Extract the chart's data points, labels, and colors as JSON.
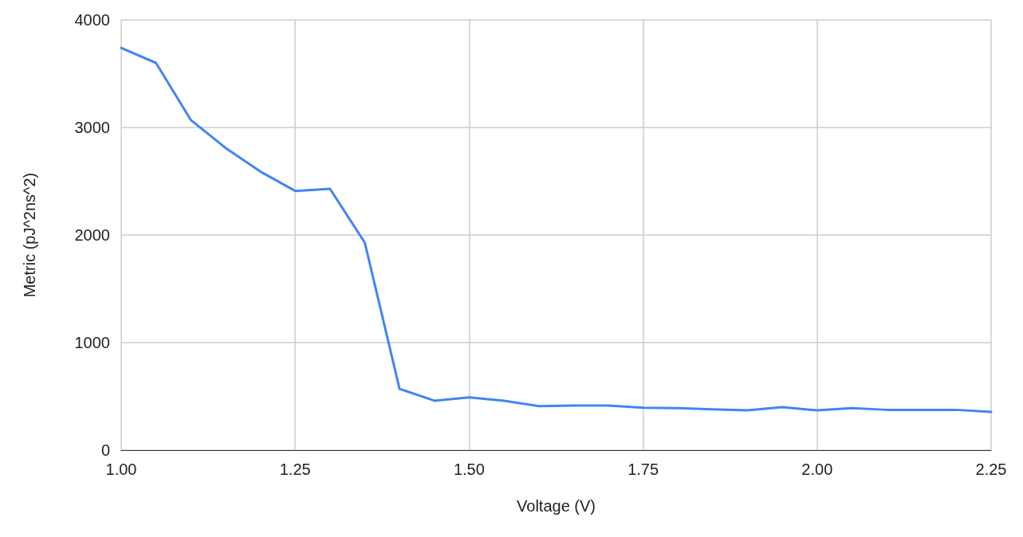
{
  "chart_data": {
    "type": "line",
    "xlabel": "Voltage (V)",
    "ylabel": "Metric (pJ^2ns^2)",
    "x": [
      1.0,
      1.05,
      1.1,
      1.15,
      1.2,
      1.25,
      1.3,
      1.35,
      1.4,
      1.45,
      1.5,
      1.55,
      1.6,
      1.65,
      1.7,
      1.75,
      1.8,
      1.85,
      1.9,
      1.95,
      2.0,
      2.05,
      2.1,
      2.15,
      2.2,
      2.25
    ],
    "series": [
      {
        "color": "#4285f4",
        "values": [
          3740,
          3600,
          3070,
          2810,
          2590,
          2410,
          2430,
          1930,
          570,
          460,
          490,
          460,
          410,
          415,
          415,
          395,
          390,
          380,
          370,
          400,
          370,
          390,
          375,
          375,
          375,
          355
        ]
      }
    ],
    "xlim": [
      1.0,
      2.25
    ],
    "xticks": [
      {
        "value": 1.0,
        "label": "1.00"
      },
      {
        "value": 1.25,
        "label": "1.25"
      },
      {
        "value": 1.5,
        "label": "1.50"
      },
      {
        "value": 1.75,
        "label": "1.75"
      },
      {
        "value": 2.0,
        "label": "2.00"
      },
      {
        "value": 2.25,
        "label": "2.25"
      }
    ],
    "ylim": [
      0,
      4000
    ],
    "yticks": [
      0,
      1000,
      2000,
      3000,
      4000
    ],
    "grid": true,
    "marker": "none",
    "line_style": "solid"
  }
}
